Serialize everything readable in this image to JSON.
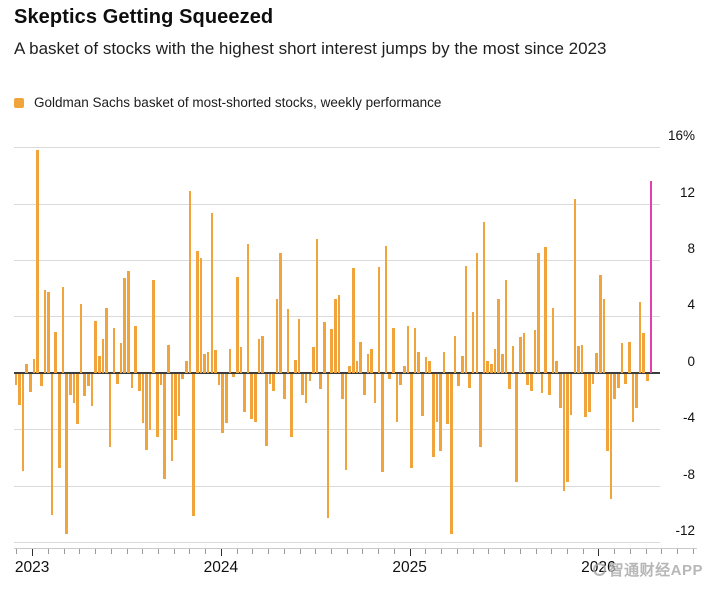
{
  "header": {
    "title": "Skeptics Getting Squeezed",
    "subtitle": "A basket of stocks with the highest short interest jumps by the most since 2023"
  },
  "legend": {
    "label": "Goldman Sachs basket of most-shorted stocks, weekly performance",
    "swatch_color": "#F2A43C"
  },
  "watermark": {
    "text": "智通财经APP"
  },
  "chart_data": {
    "type": "bar",
    "title": "Skeptics Getting Squeezed",
    "series_name": "Goldman Sachs basket of most-shorted stocks, weekly performance",
    "unit": "%",
    "bar_color": "#F2A43C",
    "highlight": {
      "index": 175,
      "color": "#E23FAF",
      "value": 13.6,
      "note": "latest week, biggest jump since 2023"
    },
    "grid_color": "#DADADA",
    "zero_line_color": "#3C3C3C",
    "ylim": [
      -12.6,
      16.9
    ],
    "legend_position": "top-left",
    "grid": true,
    "y_ticks": [
      {
        "value": 16,
        "label": "16%"
      },
      {
        "value": 12,
        "label": "12"
      },
      {
        "value": 8,
        "label": "8"
      },
      {
        "value": 4,
        "label": "4"
      },
      {
        "value": 0,
        "label": "0"
      },
      {
        "value": -4,
        "label": "-4"
      },
      {
        "value": -8,
        "label": "-8"
      },
      {
        "value": -12,
        "label": "-12"
      }
    ],
    "x_year_ticks": [
      {
        "label": "2023",
        "week_index": 4.5
      },
      {
        "label": "2024",
        "week_index": 56.5
      },
      {
        "label": "2025",
        "week_index": 108.5
      },
      {
        "label": "2026",
        "week_index": 160.5
      }
    ],
    "weekly_values": [
      -0.8,
      -2.2,
      -6.9,
      0.6,
      -1.3,
      1.0,
      15.8,
      -0.9,
      5.9,
      5.7,
      -10.0,
      2.9,
      -6.7,
      6.1,
      -11.4,
      -1.5,
      -2.1,
      -3.6,
      4.9,
      -1.6,
      -0.9,
      -2.3,
      3.7,
      1.2,
      2.4,
      4.6,
      -5.2,
      3.2,
      -0.7,
      2.1,
      6.7,
      7.2,
      -1.0,
      3.3,
      -1.2,
      -3.5,
      -5.4,
      -4.0,
      6.6,
      -4.5,
      -0.8,
      -7.5,
      2.0,
      -6.2,
      -4.7,
      -3.0,
      -0.4,
      0.8,
      12.9,
      -10.1,
      8.6,
      8.1,
      1.3,
      1.5,
      11.3,
      1.6,
      -0.8,
      -4.2,
      -3.5,
      1.7,
      -0.2,
      6.8,
      1.8,
      -2.7,
      9.1,
      -3.2,
      -3.4,
      2.4,
      2.6,
      -5.1,
      -0.7,
      -1.2,
      5.2,
      8.5,
      -1.8,
      4.5,
      -4.5,
      0.9,
      3.8,
      -1.5,
      -2.1,
      -0.5,
      1.8,
      9.5,
      -1.1,
      3.6,
      -10.2,
      3.1,
      5.2,
      5.5,
      -1.8,
      -6.8,
      0.5,
      7.4,
      0.8,
      2.2,
      -1.5,
      1.3,
      1.7,
      -2.1,
      7.5,
      -7.0,
      9.0,
      -0.4,
      3.2,
      -3.4,
      -0.8,
      0.5,
      3.3,
      -6.7,
      3.2,
      1.5,
      -3.0,
      1.1,
      0.8,
      -5.9,
      -3.4,
      -5.5,
      1.5,
      -3.6,
      -11.4,
      2.6,
      -0.9,
      1.2,
      7.6,
      -1.0,
      4.3,
      8.5,
      -5.2,
      10.7,
      0.8,
      0.6,
      1.7,
      5.2,
      1.3,
      6.6,
      -1.1,
      1.9,
      -7.7,
      2.5,
      2.8,
      -0.8,
      -1.2,
      3.0,
      8.5,
      -1.4,
      8.9,
      -1.5,
      4.6,
      0.8,
      -2.4,
      -8.3,
      -7.7,
      -2.9,
      12.3,
      1.9,
      2.0,
      -3.1,
      -2.7,
      -0.7,
      1.4,
      6.9,
      5.2,
      -5.5,
      -8.9,
      -1.8,
      -1.0,
      2.1,
      -0.7,
      2.2,
      -3.4,
      -2.4,
      5.0,
      2.8,
      -0.5,
      13.6
    ]
  }
}
